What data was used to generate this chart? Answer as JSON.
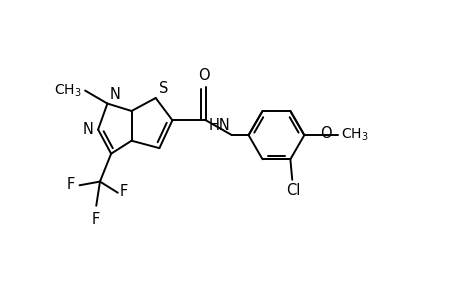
{
  "bg_color": "#ffffff",
  "line_color": "#000000",
  "lw": 1.4,
  "fs": 10.5,
  "figsize": [
    4.6,
    3.0
  ],
  "dpi": 100,
  "xlim": [
    0.05,
    1.1
  ],
  "ylim": [
    0.15,
    0.95
  ]
}
